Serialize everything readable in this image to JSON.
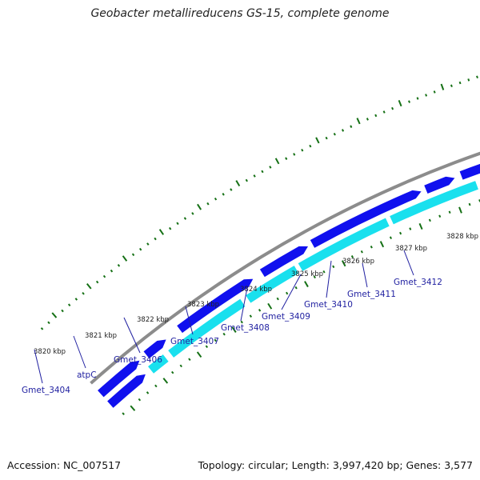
{
  "title": "Geobacter metallireducens GS-15, complete genome",
  "footer": {
    "accession": "Accession: NC_007517",
    "topology": "Topology: circular; Length: 3,997,420 bp; Genes: 3,577"
  },
  "colors": {
    "backbone": "#8c8c8c",
    "cds_forward": "#1010ee",
    "cds_reverse": "#19e0ee",
    "rna_orange": "#f08c1a",
    "rna_pale": "#f4eca4",
    "tick": "#157015",
    "label": "#1f1fa0"
  },
  "scale": {
    "tick_labels": [
      "3820 kbp",
      "3821 kbp",
      "3822 kbp",
      "3823 kbp",
      "3824 kbp",
      "3825 kbp",
      "3826 kbp",
      "3827 kbp",
      "3828 kbp"
    ]
  },
  "genes": [
    {
      "label": "Gmet_3404"
    },
    {
      "label": "atpC"
    },
    {
      "label": "Gmet_3406"
    },
    {
      "label": "Gmet_3407"
    },
    {
      "label": "Gmet_3408"
    },
    {
      "label": "Gmet_3409"
    },
    {
      "label": "Gmet_3410"
    },
    {
      "label": "Gmet_3411"
    },
    {
      "label": "Gmet_3412"
    }
  ]
}
